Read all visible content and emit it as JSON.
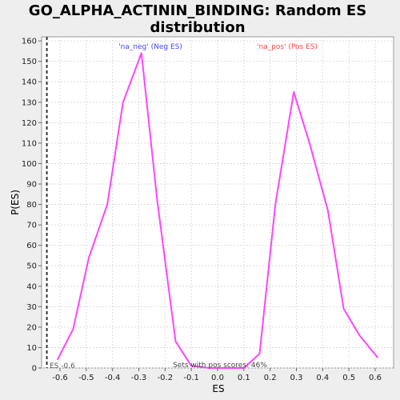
{
  "chart_data": {
    "type": "line",
    "title_lines": [
      "GO_ALPHA_ACTININ_BINDING: Random ES",
      "distribution"
    ],
    "xlabel": "ES",
    "ylabel": "P(ES)",
    "xlim": [
      -0.67,
      0.67
    ],
    "ylim": [
      0,
      162
    ],
    "x_ticks": [
      -0.6,
      -0.5,
      -0.4,
      -0.3,
      -0.2,
      -0.1,
      0.0,
      0.1,
      0.2,
      0.3,
      0.4,
      0.5,
      0.6
    ],
    "x_tick_labels": [
      "-0.6",
      "-0.5",
      "-0.4",
      "-0.3",
      "-0.2",
      "-0.1",
      "0.0",
      "0.1",
      "0.2",
      "0.3",
      "0.4",
      "0.5",
      "0.6"
    ],
    "y_ticks": [
      0,
      10,
      20,
      30,
      40,
      50,
      60,
      70,
      80,
      90,
      100,
      110,
      120,
      130,
      140,
      150,
      160
    ],
    "grid": true,
    "series": [
      {
        "color": "#ff44ff",
        "points": [
          [
            -0.61,
            4
          ],
          [
            -0.55,
            19
          ],
          [
            -0.49,
            54
          ],
          [
            -0.42,
            80
          ],
          [
            -0.36,
            130
          ],
          [
            -0.29,
            154
          ],
          [
            -0.23,
            82
          ],
          [
            -0.16,
            13
          ],
          [
            -0.1,
            1
          ],
          [
            -0.03,
            0
          ],
          [
            0.03,
            0
          ],
          [
            0.1,
            0
          ],
          [
            0.16,
            7
          ],
          [
            0.22,
            80
          ],
          [
            0.29,
            135
          ],
          [
            0.35,
            110
          ],
          [
            0.42,
            77
          ],
          [
            0.48,
            29
          ],
          [
            0.54,
            16
          ],
          [
            0.61,
            5
          ]
        ]
      }
    ],
    "annotations": {
      "neg_label": "'na_neg' (Neg ES)",
      "neg_color": "#4444ff",
      "pos_label": "'na_pos' (Pos ES)",
      "pos_color": "#ff4444",
      "es_line_value": -0.65,
      "es_line_label": "ES -0.6",
      "pos_scores_label": "Sets with pos scores: 46%"
    }
  }
}
